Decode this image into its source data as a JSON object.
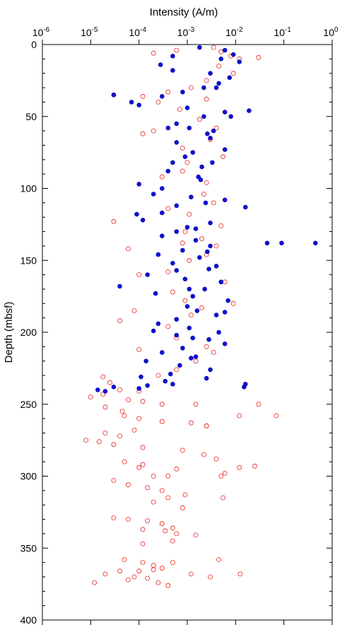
{
  "chart_data": {
    "type": "scatter",
    "title": "",
    "xlabel": "Intensity (A/m)",
    "ylabel": "Depth (mbsf)",
    "x_scale": "log",
    "xlim": [
      1e-06,
      1
    ],
    "ylim": [
      0,
      400
    ],
    "y_inverted": true,
    "x_tick_labels": [
      {
        "base": "10",
        "exp": "-6"
      },
      {
        "base": "10",
        "exp": "-5"
      },
      {
        "base": "10",
        "exp": "-4"
      },
      {
        "base": "10",
        "exp": "-3"
      },
      {
        "base": "10",
        "exp": "-2"
      },
      {
        "base": "10",
        "exp": "-1"
      },
      {
        "base": "10",
        "exp": "0"
      }
    ],
    "y_ticks": [
      "0",
      "50",
      "100",
      "150",
      "200",
      "250",
      "300",
      "350",
      "400"
    ],
    "grid": false,
    "legend": "none",
    "series_style": [
      {
        "marker": "open-circle",
        "color": "#e8231c"
      },
      {
        "marker": "filled-circle",
        "color": "#1010c8"
      }
    ],
    "series": [
      {
        "points": [
          [
            0.0035,
            2
          ],
          [
            0.005,
            5
          ],
          [
            0.008,
            8
          ],
          [
            0.012,
            10
          ],
          [
            0.0006,
            4
          ],
          [
            0.0002,
            6
          ],
          [
            0.03,
            9
          ],
          [
            0.0045,
            15
          ],
          [
            0.009,
            20
          ],
          [
            0.0025,
            25
          ],
          [
            0.0012,
            30
          ],
          [
            0.0004,
            33
          ],
          [
            3e-05,
            35
          ],
          [
            0.00012,
            36
          ],
          [
            0.00025,
            40
          ],
          [
            0.0025,
            38
          ],
          [
            0.0007,
            45
          ],
          [
            0.0018,
            52
          ],
          [
            0.004,
            58
          ],
          [
            0.0002,
            60
          ],
          [
            0.00012,
            62
          ],
          [
            0.003,
            66
          ],
          [
            0.0008,
            72
          ],
          [
            0.0055,
            78
          ],
          [
            0.001,
            82
          ],
          [
            0.0008,
            88
          ],
          [
            0.0003,
            92
          ],
          [
            0.0025,
            96
          ],
          [
            0.0022,
            104
          ],
          [
            0.0035,
            110
          ],
          [
            0.0004,
            114
          ],
          [
            0.0011,
            118
          ],
          [
            3e-05,
            123
          ],
          [
            0.005,
            126
          ],
          [
            0.0009,
            130
          ],
          [
            0.002,
            135
          ],
          [
            0.0008,
            138
          ],
          [
            0.004,
            140
          ],
          [
            6e-05,
            142
          ],
          [
            0.0025,
            146
          ],
          [
            0.0011,
            150
          ],
          [
            0.0004,
            158
          ],
          [
            0.0001,
            160
          ],
          [
            0.006,
            165
          ],
          [
            0.0005,
            172
          ],
          [
            0.0009,
            178
          ],
          [
            0.009,
            180
          ],
          [
            0.002,
            183
          ],
          [
            8e-05,
            185
          ],
          [
            0.0012,
            188
          ],
          [
            4e-05,
            192
          ],
          [
            0.0004,
            196
          ],
          [
            0.0006,
            204
          ],
          [
            0.0025,
            210
          ],
          [
            0.0001,
            212
          ],
          [
            0.0035,
            214
          ],
          [
            0.0015,
            220
          ],
          [
            0.0006,
            226
          ],
          [
            0.00025,
            230
          ],
          [
            1.8e-05,
            231
          ],
          [
            2.5e-05,
            235
          ],
          [
            4e-05,
            240
          ],
          [
            0.0001,
            241
          ],
          [
            1.8e-05,
            243
          ],
          [
            1e-05,
            245
          ],
          [
            6e-05,
            247
          ],
          [
            0.00012,
            248
          ],
          [
            0.0003,
            250
          ],
          [
            2e-05,
            252
          ],
          [
            4.5e-05,
            255
          ],
          [
            5e-05,
            258
          ],
          [
            0.0001,
            260
          ],
          [
            0.0003,
            262
          ],
          [
            0.0012,
            263
          ],
          [
            0.0025,
            265
          ],
          [
            8e-05,
            268
          ],
          [
            2e-05,
            270
          ],
          [
            4e-05,
            272
          ],
          [
            8e-06,
            275
          ],
          [
            1.5e-05,
            276
          ],
          [
            3e-05,
            278
          ],
          [
            0.00012,
            280
          ],
          [
            0.0008,
            282
          ],
          [
            0.0022,
            285
          ],
          [
            0.004,
            288
          ],
          [
            5e-05,
            290
          ],
          [
            0.00012,
            292
          ],
          [
            0.0006,
            295
          ],
          [
            0.006,
            298
          ],
          [
            0.0002,
            300
          ],
          [
            3e-05,
            303
          ],
          [
            6e-05,
            306
          ],
          [
            0.00015,
            308
          ],
          [
            0.0003,
            310
          ],
          [
            0.0009,
            313
          ],
          [
            0.0004,
            315
          ],
          [
            0.0002,
            318
          ],
          [
            3e-05,
            329
          ],
          [
            6e-05,
            330
          ],
          [
            0.00015,
            331
          ],
          [
            0.0003,
            333
          ],
          [
            0.00012,
            337
          ],
          [
            0.00035,
            338
          ],
          [
            0.0006,
            340
          ],
          [
            0.0015,
            341
          ],
          [
            0.0005,
            345
          ],
          [
            0.00012,
            347
          ],
          [
            5e-05,
            358
          ],
          [
            0.00012,
            360
          ],
          [
            0.0002,
            362
          ],
          [
            0.0003,
            364
          ],
          [
            4e-05,
            366
          ],
          [
            2e-05,
            368
          ],
          [
            8e-05,
            370
          ],
          [
            0.00015,
            371
          ],
          [
            1.2e-05,
            374
          ],
          [
            6e-05,
            372
          ],
          [
            0.00025,
            374
          ],
          [
            0.0005,
            360
          ],
          [
            0.0012,
            368
          ],
          [
            0.003,
            370
          ],
          [
            0.0004,
            376
          ],
          [
            0.012,
            258
          ],
          [
            0.07,
            258
          ],
          [
            0.03,
            250
          ],
          [
            0.025,
            293
          ],
          [
            0.012,
            294
          ],
          [
            0.005,
            300
          ],
          [
            0.0055,
            315
          ],
          [
            0.0125,
            368
          ],
          [
            0.0045,
            358
          ],
          [
            0.0008,
            322
          ],
          [
            0.0005,
            336
          ],
          [
            0.0015,
            250
          ],
          [
            0.0025,
            265
          ],
          [
            0.0001,
            294
          ],
          [
            0.0002,
            365
          ],
          [
            0.0001,
            366
          ],
          [
            0.0004,
            300
          ]
        ]
      },
      {
        "points": [
          [
            0.0018,
            2
          ],
          [
            0.006,
            4
          ],
          [
            0.009,
            7
          ],
          [
            0.012,
            12
          ],
          [
            0.0005,
            8
          ],
          [
            0.00028,
            14
          ],
          [
            0.0005,
            18
          ],
          [
            0.003,
            20
          ],
          [
            0.0075,
            23
          ],
          [
            0.0045,
            27
          ],
          [
            0.0008,
            33
          ],
          [
            3e-05,
            35
          ],
          [
            0.0003,
            36
          ],
          [
            7e-05,
            40
          ],
          [
            0.0001,
            42
          ],
          [
            0.001,
            44
          ],
          [
            0.006,
            47
          ],
          [
            0.019,
            46
          ],
          [
            0.0022,
            50
          ],
          [
            0.0006,
            55
          ],
          [
            0.0004,
            58
          ],
          [
            0.0026,
            62
          ],
          [
            0.003,
            65
          ],
          [
            0.0006,
            68
          ],
          [
            0.006,
            73
          ],
          [
            0.0009,
            78
          ],
          [
            0.0005,
            82
          ],
          [
            0.002,
            85
          ],
          [
            0.0004,
            88
          ],
          [
            0.0017,
            92
          ],
          [
            0.0001,
            97
          ],
          [
            0.0003,
            100
          ],
          [
            0.0002,
            104
          ],
          [
            0.0012,
            106
          ],
          [
            0.006,
            108
          ],
          [
            0.0006,
            112
          ],
          [
            0.016,
            113
          ],
          [
            0.0003,
            117
          ],
          [
            9e-05,
            118
          ],
          [
            0.00012,
            122
          ],
          [
            0.003,
            124
          ],
          [
            0.001,
            127
          ],
          [
            0.0006,
            130
          ],
          [
            0.0003,
            133
          ],
          [
            0.0015,
            136
          ],
          [
            0.045,
            138
          ],
          [
            0.45,
            138
          ],
          [
            0.09,
            138
          ],
          [
            0.003,
            140
          ],
          [
            0.0008,
            143
          ],
          [
            0.00025,
            146
          ],
          [
            0.0018,
            148
          ],
          [
            0.0005,
            152
          ],
          [
            0.004,
            154
          ],
          [
            0.0006,
            157
          ],
          [
            0.00015,
            160
          ],
          [
            0.0009,
            163
          ],
          [
            0.005,
            165
          ],
          [
            4e-05,
            168
          ],
          [
            0.0011,
            170
          ],
          [
            0.00022,
            173
          ],
          [
            0.0013,
            175
          ],
          [
            0.007,
            178
          ],
          [
            0.001,
            182
          ],
          [
            0.0016,
            185
          ],
          [
            0.004,
            188
          ],
          [
            0.0006,
            191
          ],
          [
            0.00025,
            194
          ],
          [
            0.0011,
            197
          ],
          [
            0.0002,
            199
          ],
          [
            0.0006,
            202
          ],
          [
            0.0028,
            205
          ],
          [
            0.006,
            208
          ],
          [
            0.0008,
            211
          ],
          [
            0.0003,
            214
          ],
          [
            0.0015,
            217
          ],
          [
            0.00014,
            220
          ],
          [
            0.0007,
            223
          ],
          [
            0.003,
            226
          ],
          [
            0.00045,
            229
          ],
          [
            0.00011,
            231
          ],
          [
            0.00035,
            234
          ],
          [
            0.016,
            236
          ],
          [
            0.015,
            238
          ],
          [
            0.0005,
            236
          ],
          [
            0.00015,
            237
          ],
          [
            3e-05,
            238
          ],
          [
            1.4e-05,
            240
          ],
          [
            2e-05,
            241
          ],
          [
            0.0001,
            239
          ],
          [
            0.0025,
            232
          ],
          [
            0.0012,
            218
          ],
          [
            0.0045,
            200
          ],
          [
            0.0026,
            144
          ],
          [
            0.0033,
            82
          ],
          [
            0.0022,
            30
          ],
          [
            0.005,
            10
          ],
          [
            0.0024,
            110
          ],
          [
            0.0015,
            128
          ],
          [
            0.0035,
            60
          ],
          [
            0.008,
            50
          ],
          [
            0.0013,
            75
          ],
          [
            0.0019,
            94
          ],
          [
            0.004,
            30
          ],
          [
            0.0011,
            58
          ],
          [
            0.0028,
            156
          ],
          [
            0.006,
            186
          ],
          [
            0.0013,
            204
          ],
          [
            0.0023,
            170
          ]
        ]
      }
    ]
  }
}
